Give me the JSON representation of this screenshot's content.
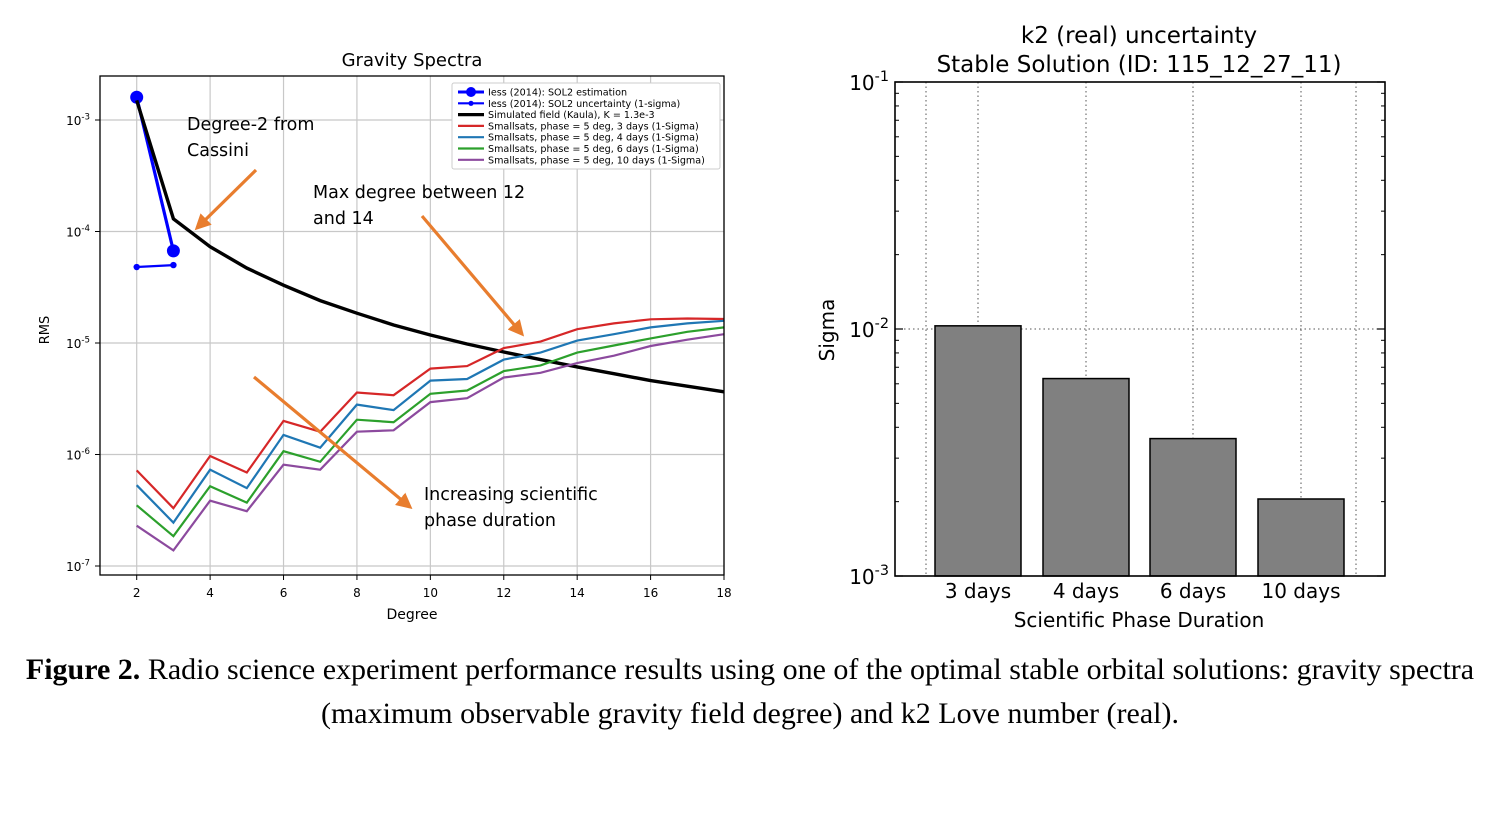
{
  "chart_data": [
    {
      "type": "line",
      "title": "Gravity Spectra",
      "xlabel": "Degree",
      "ylabel": "RMS",
      "xlim": [
        1,
        18
      ],
      "ylim": [
        1e-07,
        0.0025
      ],
      "yscale": "log",
      "grid": true,
      "legend_position": "top-right",
      "x_ticks": [
        "2",
        "4",
        "6",
        "8",
        "10",
        "12",
        "14",
        "16",
        "18"
      ],
      "y_ticks": [
        {
          "base": "10",
          "exp": "-3",
          "value": 0.001
        },
        {
          "base": "10",
          "exp": "-4",
          "value": 0.0001
        },
        {
          "base": "10",
          "exp": "-5",
          "value": 1e-05
        },
        {
          "base": "10",
          "exp": "-6",
          "value": 1e-06
        },
        {
          "base": "10",
          "exp": "-7",
          "value": 1e-07
        }
      ],
      "series": [
        {
          "name": "Iess (2014): SOL2 estimation",
          "color": "#0000ff",
          "marker": "large-circle",
          "x": [
            2,
            3
          ],
          "y": [
            0.0016,
            6.7e-05
          ]
        },
        {
          "name": "Iess (2014): SOL2 uncertainty (1-sigma)",
          "color": "#0000ff",
          "marker": "small-circle",
          "x": [
            2,
            3
          ],
          "y": [
            4.8e-05,
            5e-05
          ]
        },
        {
          "name": "Simulated field (Kaula), K = 1.3e-3",
          "color": "#000000",
          "x": [
            2,
            3,
            4,
            5,
            6,
            7,
            8,
            9,
            10,
            11,
            12,
            13,
            14,
            15,
            16,
            17,
            18
          ],
          "y": [
            0.0015,
            0.00013,
            7.3e-05,
            4.7e-05,
            3.3e-05,
            2.4e-05,
            1.85e-05,
            1.45e-05,
            1.18e-05,
            9.8e-06,
            8.3e-06,
            7.1e-06,
            6.1e-06,
            5.3e-06,
            4.6e-06,
            4.1e-06,
            3.65e-06
          ]
        },
        {
          "name": "Smallsats, phase = 5 deg, 3 days (1-Sigma)",
          "color": "#d62728",
          "x": [
            2,
            3,
            4,
            5,
            6,
            7,
            8,
            9,
            10,
            11,
            12,
            13,
            14,
            15,
            16,
            17,
            18
          ],
          "y": [
            7.2e-07,
            3.3e-07,
            9.7e-07,
            6.9e-07,
            2e-06,
            1.6e-06,
            3.6e-06,
            3.4e-06,
            5.9e-06,
            6.2e-06,
            9e-06,
            1.03e-05,
            1.33e-05,
            1.5e-05,
            1.63e-05,
            1.66e-05,
            1.64e-05
          ]
        },
        {
          "name": "Smallsats, phase = 5 deg, 4 days (1-Sigma)",
          "color": "#1f77b4",
          "x": [
            2,
            3,
            4,
            5,
            6,
            7,
            8,
            9,
            10,
            11,
            12,
            13,
            14,
            15,
            16,
            17,
            18
          ],
          "y": [
            5.3e-07,
            2.45e-07,
            7.3e-07,
            5e-07,
            1.5e-06,
            1.15e-06,
            2.8e-06,
            2.5e-06,
            4.6e-06,
            4.75e-06,
            7.1e-06,
            8.2e-06,
            1.05e-05,
            1.2e-05,
            1.38e-05,
            1.5e-05,
            1.58e-05
          ]
        },
        {
          "name": "Smallsats, phase = 5 deg, 6 days (1-Sigma)",
          "color": "#2ca02c",
          "x": [
            2,
            3,
            4,
            5,
            6,
            7,
            8,
            9,
            10,
            11,
            12,
            13,
            14,
            15,
            16,
            17,
            18
          ],
          "y": [
            3.5e-07,
            1.85e-07,
            5.2e-07,
            3.7e-07,
            1.07e-06,
            8.6e-07,
            2.05e-06,
            1.95e-06,
            3.5e-06,
            3.75e-06,
            5.6e-06,
            6.3e-06,
            8.2e-06,
            9.5e-06,
            1.1e-05,
            1.26e-05,
            1.38e-05
          ]
        },
        {
          "name": "Smallsats, phase = 5 deg, 10 days (1-Sigma)",
          "color": "#8c4a9e",
          "x": [
            2,
            3,
            4,
            5,
            6,
            7,
            8,
            9,
            10,
            11,
            12,
            13,
            14,
            15,
            16,
            17,
            18
          ],
          "y": [
            2.3e-07,
            1.38e-07,
            3.85e-07,
            3.1e-07,
            8.1e-07,
            7.3e-07,
            1.6e-06,
            1.65e-06,
            2.95e-06,
            3.2e-06,
            4.9e-06,
            5.4e-06,
            6.6e-06,
            7.7e-06,
            9.4e-06,
            1.07e-05,
            1.2e-05
          ]
        }
      ],
      "annotations": [
        {
          "lines": [
            "Degree-2 from",
            "Cassini"
          ],
          "color": "#e87d2e"
        },
        {
          "lines": [
            "Max degree between 12",
            "and 14"
          ],
          "color": "#e87d2e"
        },
        {
          "lines": [
            "Increasing scientific",
            "phase duration"
          ],
          "color": "#e87d2e"
        }
      ]
    },
    {
      "type": "bar",
      "title": [
        "k2 (real) uncertainty",
        "Stable Solution (ID: 115_12_27_11)"
      ],
      "xlabel": "Scientific Phase Duration",
      "ylabel": "Sigma",
      "yscale": "log",
      "ylim": [
        0.001,
        0.1
      ],
      "grid": true,
      "categories": [
        "3 days",
        "4 days",
        "6 days",
        "10 days"
      ],
      "values": [
        0.0103,
        0.0063,
        0.0036,
        0.00205
      ],
      "bar_color": "#808080",
      "y_ticks": [
        {
          "base": "10",
          "exp": "-1",
          "value": 0.1
        },
        {
          "base": "10",
          "exp": "-2",
          "value": 0.01
        },
        {
          "base": "10",
          "exp": "-3",
          "value": 0.001
        }
      ]
    }
  ],
  "caption": {
    "label": "Figure 2.",
    "text": " Radio science experiment performance results using one of the optimal stable orbital solutions: gravity spectra (maximum observable gravity field degree) and k2 Love number (real)."
  }
}
